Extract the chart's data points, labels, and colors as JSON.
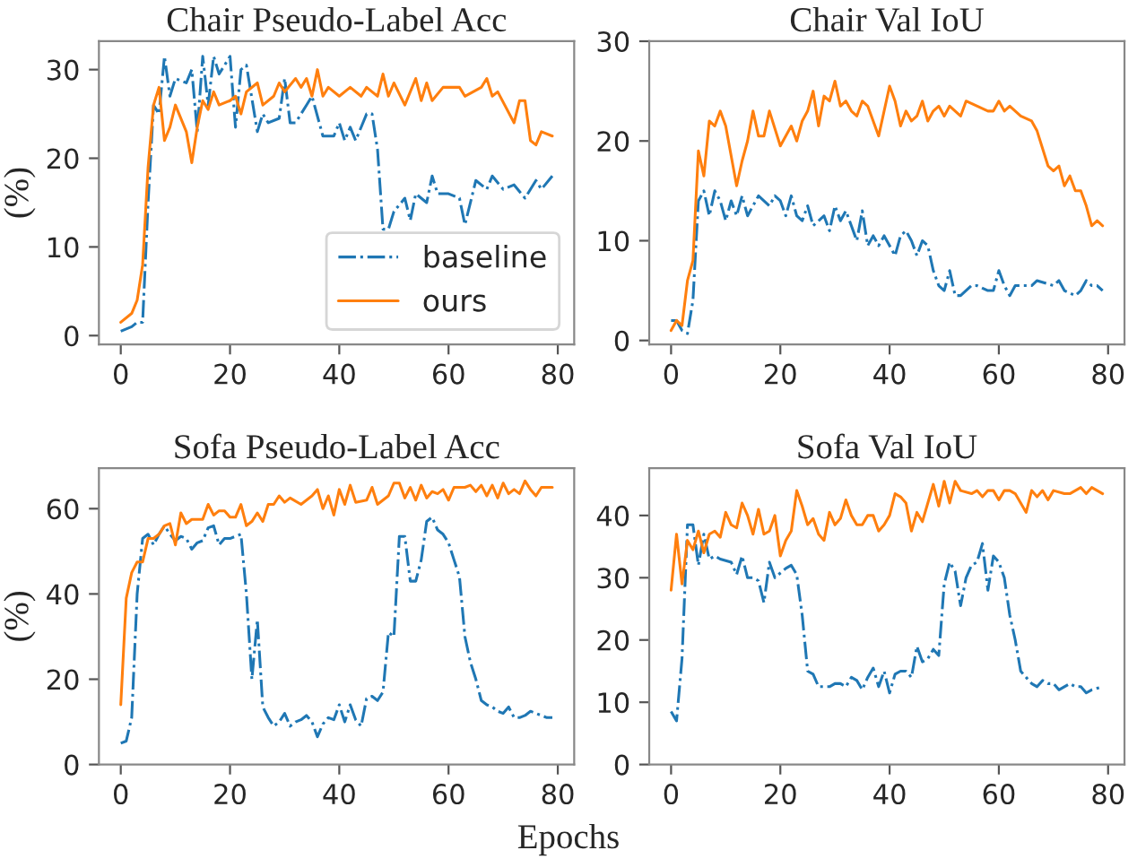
{
  "chart_data": [
    {
      "type": "line",
      "title": "Chair Pseudo-Label Acc",
      "ylabel": "(%)",
      "xlim": [
        -4,
        83
      ],
      "ylim": [
        -1,
        33.2
      ],
      "xticks": [
        0,
        20,
        40,
        60,
        80
      ],
      "yticks": [
        0,
        10,
        20,
        30
      ],
      "grid": false,
      "legend": "bottom right",
      "series": [
        {
          "name": "baseline",
          "color": "#1f77b4",
          "line_style": "dashdot",
          "x": [
            0,
            2,
            3,
            4,
            5,
            6,
            7,
            8,
            9,
            10,
            12,
            13,
            14,
            15,
            16,
            17,
            18,
            20,
            21,
            22,
            23,
            25,
            26,
            27,
            29,
            30,
            31,
            32,
            34,
            35,
            37,
            39,
            40,
            41,
            42,
            43,
            45,
            46,
            47,
            48,
            49,
            50,
            52,
            53,
            54,
            56,
            57,
            58,
            60,
            62,
            63,
            65,
            67,
            68,
            70,
            72,
            74,
            76,
            77,
            79
          ],
          "values": [
            0.5,
            1,
            1.5,
            1.5,
            15,
            26,
            25,
            31.5,
            27,
            29,
            28.5,
            30,
            23,
            31.5,
            26,
            31.5,
            29.5,
            31.5,
            23.5,
            30,
            30.5,
            23,
            25,
            24,
            24.5,
            29,
            24,
            24,
            26,
            27,
            22.5,
            22.5,
            24,
            22,
            23.5,
            22,
            25,
            25,
            21,
            12,
            12,
            14,
            15.5,
            13,
            16,
            15,
            18,
            16,
            16,
            15.5,
            12.5,
            17.5,
            16.5,
            18,
            16.5,
            17,
            15.5,
            17.5,
            16.5,
            18
          ]
        },
        {
          "name": "ours",
          "color": "#ff7f0e",
          "line_style": "solid",
          "x": [
            0,
            2,
            3,
            4,
            5,
            6,
            7,
            8,
            9,
            10,
            12,
            13,
            14,
            15,
            16,
            17,
            18,
            20,
            21,
            22,
            23,
            25,
            26,
            28,
            29,
            30,
            32,
            33,
            34,
            35,
            36,
            37,
            38,
            40,
            42,
            44,
            45,
            46,
            47,
            48,
            49,
            50,
            52,
            54,
            55,
            56,
            57,
            59,
            62,
            63,
            66,
            67,
            68,
            69,
            72,
            73,
            74,
            75,
            76,
            77,
            79
          ],
          "values": [
            1.5,
            2.5,
            4,
            8,
            19,
            26,
            28,
            22,
            23.5,
            26,
            23,
            19.5,
            23.5,
            26.5,
            25.5,
            27.5,
            26,
            26.5,
            27,
            25,
            27.5,
            28.5,
            26,
            27,
            28.5,
            27.5,
            29,
            28,
            29,
            27,
            30,
            27,
            28,
            27,
            28,
            27,
            28,
            27.5,
            27,
            29.5,
            27,
            28.5,
            26,
            29,
            26.5,
            28.5,
            26.5,
            28,
            28,
            27,
            28,
            29,
            27,
            27.5,
            24,
            26.5,
            26.5,
            22,
            21.5,
            23,
            22.5
          ]
        }
      ]
    },
    {
      "type": "line",
      "title": "Chair Val IoU",
      "xlim": [
        -4,
        83
      ],
      "ylim": [
        -0.4,
        30
      ],
      "xticks": [
        0,
        20,
        40,
        60,
        80
      ],
      "yticks": [
        0,
        10,
        20,
        30
      ],
      "grid": false,
      "series": [
        {
          "color": "#1f77b4",
          "line_style": "dashdot",
          "x": [
            0,
            1,
            2,
            3,
            4,
            5,
            6,
            7,
            8,
            9,
            10,
            11,
            12,
            13,
            14,
            16,
            18,
            19,
            20,
            21,
            22,
            23,
            24,
            25,
            26,
            28,
            29,
            30,
            31,
            32,
            33,
            34,
            35,
            36,
            37,
            38,
            39,
            40,
            41,
            42,
            43,
            44,
            45,
            46,
            47,
            48,
            49,
            50,
            51,
            52,
            53,
            55,
            56,
            58,
            59,
            60,
            61,
            62,
            63,
            66,
            67,
            70,
            71,
            72,
            74,
            75,
            76,
            77,
            78,
            79
          ],
          "values": [
            2,
            2,
            1,
            0.7,
            4,
            14,
            15,
            12.5,
            15,
            14,
            12,
            14,
            12.5,
            14.5,
            12.5,
            14.5,
            13.5,
            14.5,
            14,
            12.5,
            14.5,
            12.5,
            12,
            13.5,
            11.5,
            12.5,
            11,
            13.5,
            12,
            13,
            11.5,
            10,
            13,
            9.5,
            10.5,
            9.5,
            10.5,
            9.5,
            8.5,
            10.5,
            11,
            10,
            8.5,
            10,
            9.5,
            7,
            5.5,
            5,
            7,
            4.5,
            4.5,
            5.5,
            5.5,
            5,
            5,
            7,
            5.5,
            4.5,
            5.5,
            5.5,
            6,
            5.5,
            6,
            5,
            4.5,
            5,
            6,
            5.5,
            5.5,
            5
          ]
        },
        {
          "color": "#ff7f0e",
          "line_style": "solid",
          "x": [
            0,
            1,
            2,
            3,
            4,
            5,
            6,
            7,
            8,
            9,
            10,
            12,
            13,
            14,
            15,
            16,
            17,
            18,
            20,
            22,
            23,
            24,
            25,
            26,
            27,
            28,
            29,
            30,
            31,
            32,
            33,
            34,
            35,
            36,
            37,
            38,
            40,
            41,
            42,
            43,
            44,
            45,
            46,
            47,
            48,
            49,
            50,
            51,
            53,
            54,
            58,
            59,
            60,
            61,
            62,
            64,
            66,
            67,
            69,
            70,
            71,
            72,
            73,
            74,
            75,
            76,
            77,
            78,
            79
          ],
          "values": [
            1,
            2,
            1.5,
            6,
            8,
            19,
            16.5,
            22,
            21.5,
            23,
            21.5,
            15.5,
            18,
            20,
            23,
            20.5,
            20.5,
            23,
            19.5,
            21.5,
            20,
            22,
            23,
            25,
            21.5,
            24.5,
            24,
            26,
            23.5,
            24,
            23,
            22.5,
            24,
            23.5,
            22,
            20.5,
            25.5,
            24,
            21.5,
            23,
            22,
            22.5,
            24,
            22,
            23,
            23.5,
            22.5,
            23.5,
            22.5,
            24,
            23,
            23,
            24,
            23,
            23.5,
            22.5,
            22,
            21,
            17.5,
            17,
            17.5,
            15.5,
            16.5,
            15,
            15,
            13.5,
            11.5,
            12,
            11.5
          ]
        }
      ]
    },
    {
      "type": "line",
      "title": "Sofa Pseudo-Label Acc",
      "ylabel": "(%)",
      "xlabel": "Epochs",
      "xlim": [
        -4,
        83
      ],
      "ylim": [
        0,
        69.5
      ],
      "xticks": [
        0,
        20,
        40,
        60,
        80
      ],
      "yticks": [
        0,
        20,
        40,
        60
      ],
      "grid": false,
      "series": [
        {
          "color": "#1f77b4",
          "line_style": "dashdot",
          "x": [
            0,
            1,
            2,
            3,
            4,
            5,
            6,
            7,
            8,
            9,
            10,
            11,
            12,
            13,
            14,
            15,
            16,
            17,
            18,
            19,
            20,
            21,
            22,
            23,
            24,
            25,
            26,
            27,
            28,
            29,
            30,
            31,
            32,
            33,
            34,
            35,
            36,
            37,
            38,
            39,
            40,
            41,
            42,
            43,
            44,
            45,
            46,
            47,
            48,
            49,
            50,
            51,
            52,
            53,
            54,
            55,
            56,
            57,
            58,
            59,
            60,
            61,
            62,
            63,
            64,
            65,
            66,
            67,
            68,
            69,
            70,
            71,
            72,
            73,
            74,
            75,
            76,
            77,
            78,
            79
          ],
          "values": [
            5,
            5.5,
            11,
            40,
            53,
            54,
            51.5,
            54,
            56,
            54,
            52.5,
            53.5,
            53,
            50.5,
            52,
            52.5,
            55.5,
            56,
            51.5,
            53,
            53,
            53.5,
            54,
            40,
            20,
            34,
            13.5,
            11,
            9,
            10,
            12,
            9,
            10,
            10.5,
            11.5,
            10,
            6.5,
            9.5,
            11,
            10.5,
            14,
            10,
            14,
            10.5,
            9,
            15.5,
            16,
            15,
            17,
            31,
            30,
            53.5,
            53.5,
            43,
            43,
            48,
            57,
            58,
            55,
            54,
            52,
            48,
            44,
            30,
            24,
            20,
            15,
            14,
            13.5,
            12.5,
            12,
            13.5,
            11,
            11,
            11.5,
            12.5,
            12,
            11.5,
            11,
            11
          ]
        },
        {
          "color": "#ff7f0e",
          "line_style": "solid",
          "x": [
            0,
            1,
            2,
            3,
            4,
            5,
            6,
            7,
            8,
            9,
            10,
            11,
            12,
            13,
            15,
            16,
            17,
            18,
            19,
            20,
            21,
            22,
            23,
            24,
            25,
            26,
            27,
            28,
            29,
            30,
            31,
            33,
            35,
            36,
            37,
            38,
            39,
            40,
            41,
            42,
            43,
            45,
            46,
            47,
            48,
            49,
            50,
            51,
            52,
            53,
            54,
            55,
            56,
            57,
            58,
            59,
            60,
            61,
            63,
            64,
            65,
            66,
            67,
            68,
            69,
            70,
            71,
            72,
            73,
            74,
            75,
            76,
            77,
            79
          ],
          "values": [
            14,
            39,
            45,
            47.5,
            47.5,
            53,
            53,
            54,
            56,
            56.5,
            51.5,
            59,
            56.5,
            57.5,
            57.5,
            61,
            58.5,
            59.5,
            59.5,
            58,
            58,
            61,
            56,
            57,
            59,
            57,
            61,
            61,
            63,
            61.5,
            62.5,
            61,
            63,
            64.5,
            60,
            63,
            58.5,
            64.5,
            61,
            65.5,
            61.5,
            62,
            65,
            61,
            62,
            63,
            66,
            66,
            62.5,
            65,
            62,
            65.5,
            62.5,
            64,
            63.5,
            64.5,
            62,
            65,
            65,
            65.5,
            64,
            65.5,
            63,
            65.5,
            62.5,
            66,
            63.5,
            64.5,
            63.5,
            66.5,
            64.5,
            63,
            65,
            65
          ]
        }
      ]
    },
    {
      "type": "line",
      "title": "Sofa Val IoU",
      "xlim": [
        -4,
        83
      ],
      "ylim": [
        0,
        47.6
      ],
      "xticks": [
        0,
        20,
        40,
        60,
        80
      ],
      "yticks": [
        0,
        10,
        20,
        30,
        40
      ],
      "grid": false,
      "series": [
        {
          "color": "#1f77b4",
          "line_style": "dashdot",
          "x": [
            0,
            1,
            2,
            3,
            4,
            5,
            6,
            7,
            8,
            9,
            11,
            12,
            13,
            14,
            15,
            16,
            17,
            18,
            19,
            21,
            22,
            23,
            24,
            25,
            26,
            27,
            28,
            29,
            30,
            31,
            32,
            33,
            34,
            35,
            36,
            37,
            38,
            39,
            40,
            41,
            42,
            43,
            44,
            45,
            46,
            47,
            48,
            49,
            50,
            51,
            52,
            53,
            54,
            55,
            56,
            57,
            58,
            59,
            60,
            61,
            62,
            63,
            64,
            65,
            66,
            67,
            68,
            69,
            70,
            71,
            72,
            73,
            74,
            75,
            76,
            77,
            79
          ],
          "values": [
            8.5,
            7,
            17,
            38.5,
            38.5,
            32,
            37,
            33,
            33.5,
            33,
            32.5,
            30.5,
            33.5,
            30,
            30,
            29.5,
            26,
            32.5,
            30,
            31.5,
            32,
            30.5,
            24,
            15,
            14.5,
            12.5,
            12.5,
            12.5,
            13,
            13,
            12.5,
            14,
            13.5,
            12,
            14,
            15.5,
            12.5,
            15,
            11.5,
            14.5,
            15,
            15,
            14,
            19,
            16.5,
            17,
            18.5,
            17.5,
            29,
            32.5,
            31,
            25.5,
            30,
            32,
            32.5,
            35.5,
            28,
            33.5,
            32.5,
            30,
            24,
            20,
            15,
            14,
            13,
            12.5,
            13.5,
            13,
            13,
            12,
            12.5,
            13,
            12.5,
            12.5,
            11.5,
            12,
            12.5
          ]
        },
        {
          "color": "#ff7f0e",
          "line_style": "solid",
          "x": [
            0,
            1,
            2,
            3,
            4,
            5,
            6,
            7,
            8,
            9,
            10,
            11,
            12,
            13,
            14,
            15,
            16,
            17,
            18,
            19,
            20,
            21,
            22,
            23,
            24,
            25,
            26,
            27,
            28,
            29,
            30,
            31,
            32,
            33,
            34,
            35,
            36,
            37,
            38,
            39,
            40,
            41,
            42,
            43,
            44,
            45,
            46,
            47,
            48,
            49,
            50,
            51,
            52,
            53,
            55,
            56,
            57,
            58,
            59,
            60,
            61,
            62,
            63,
            64,
            65,
            66,
            67,
            68,
            69,
            70,
            72,
            73,
            74,
            75,
            76,
            77,
            78,
            79
          ],
          "values": [
            28,
            37,
            29,
            36,
            34.5,
            37.5,
            34,
            37,
            37.5,
            36.5,
            40.5,
            38.5,
            38,
            42,
            40,
            37,
            41,
            37,
            37.5,
            40,
            33.5,
            36,
            37.5,
            44,
            41.5,
            38.5,
            39.5,
            37,
            36,
            40.5,
            38.5,
            39.5,
            42.5,
            40,
            38.5,
            38.5,
            40,
            40,
            37.5,
            38.5,
            40,
            43.5,
            43,
            42,
            37.5,
            40.5,
            39,
            42,
            45,
            41.5,
            45.5,
            42,
            45.5,
            44,
            43.5,
            44,
            43,
            44,
            44,
            42.5,
            44,
            44,
            43.5,
            42,
            40.5,
            44,
            43,
            44,
            42.5,
            44,
            43.5,
            43.5,
            44,
            44.5,
            43.5,
            44.5,
            44,
            43.5
          ]
        }
      ]
    }
  ]
}
